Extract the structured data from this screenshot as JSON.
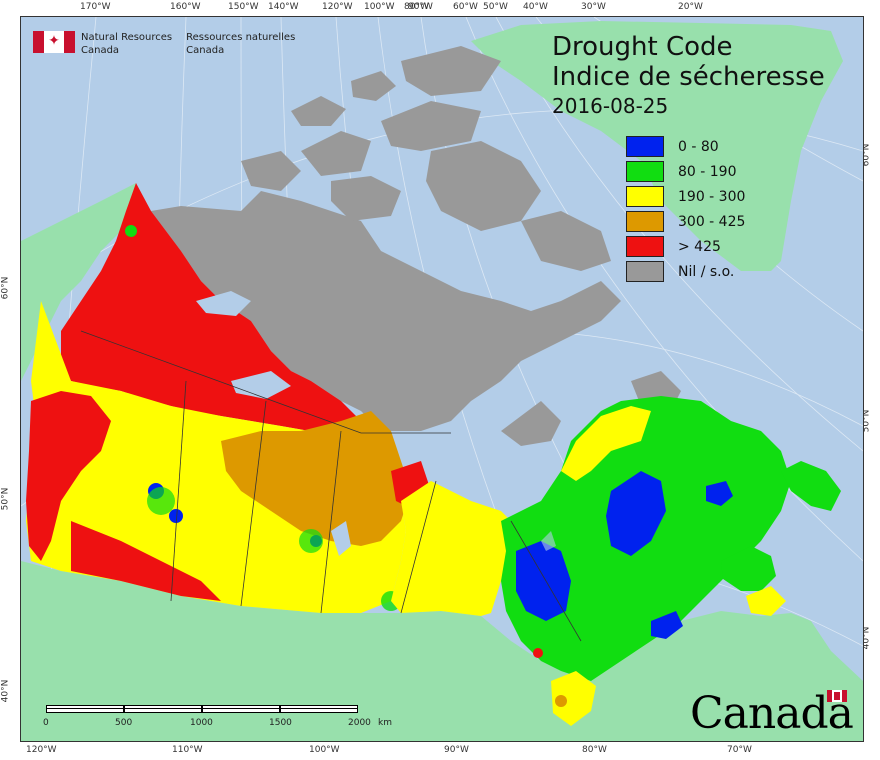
{
  "title": {
    "line1": "Drought Code",
    "line2": "Indice de sécheresse",
    "date": "2016-08-25"
  },
  "agency": {
    "en_line1": "Natural Resources",
    "en_line2": "Canada",
    "fr_line1": "Ressources naturelles",
    "fr_line2": "Canada"
  },
  "wordmark": "Canada",
  "legend": [
    {
      "label": "0 - 80",
      "color": "#0022ee"
    },
    {
      "label": "80 - 190",
      "color": "#11dd11"
    },
    {
      "label": "190 - 300",
      "color": "#ffff00"
    },
    {
      "label": "300 - 425",
      "color": "#dd9900"
    },
    {
      "label": "> 425",
      "color": "#ee1111"
    },
    {
      "label": "Nil / s.o.",
      "color": "#999999"
    }
  ],
  "top_longitudes": [
    "170°W",
    "160°W",
    "150°W",
    "140°W",
    "120°W",
    "100°W",
    "90°W",
    "80°W",
    "60°W",
    "50°W",
    "40°W",
    "30°W",
    "20°W"
  ],
  "bottom_longitudes": [
    "120°W",
    "110°W",
    "100°W",
    "90°W",
    "80°W",
    "70°W"
  ],
  "left_latitudes": [
    "60°N",
    "50°N",
    "40°N"
  ],
  "right_latitudes": [
    "60°N",
    "50°N",
    "40°N"
  ],
  "scale": {
    "ticks": [
      "0",
      "500",
      "1000",
      "1500",
      "2000"
    ],
    "unit": "km"
  },
  "colors": {
    "ocean": "#b3cde8",
    "foreign_land": "#98e0ac",
    "nil": "#999999",
    "lake": "#b3cde8"
  }
}
